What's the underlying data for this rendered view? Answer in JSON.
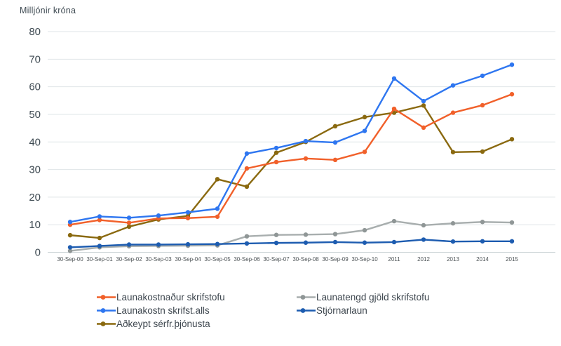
{
  "chart": {
    "y_axis_title": "Milljónir króna"
  },
  "chart_data": {
    "type": "line",
    "title": "",
    "xlabel": "",
    "ylabel": "Milljónir króna",
    "ylim": [
      0,
      80
    ],
    "yticks": [
      0,
      10,
      20,
      30,
      40,
      50,
      60,
      70,
      80
    ],
    "grid": true,
    "legend_position": "bottom",
    "categories": [
      "30-Sep-00",
      "30-Sep-01",
      "30-Sep-02",
      "30-Sep-03",
      "30-Sep-04",
      "30-Sep-05",
      "30-Sep-06",
      "30-Sep-07",
      "30-Sep-08",
      "30-Sep-09",
      "30-Sep-10",
      "2011",
      "2012",
      "2013",
      "2014",
      "2015"
    ],
    "series": [
      {
        "name": "Launakostnaður skrifstofu",
        "color": "#f1602a",
        "values": [
          10,
          11.7,
          10.7,
          12.3,
          12.4,
          12.9,
          30.4,
          32.7,
          34,
          33.5,
          36.4,
          52,
          45.2,
          50.6,
          53.3,
          57.3
        ]
      },
      {
        "name": "Launakostn skrifst.alls",
        "color": "#2e76f0",
        "values": [
          11,
          13,
          12.5,
          13.3,
          14.5,
          15.8,
          35.8,
          37.8,
          40.3,
          39.8,
          44,
          63,
          54.8,
          60.5,
          64,
          68
        ]
      },
      {
        "name": "Aðkeypt sérfr.þjónusta",
        "color": "#8a690f",
        "values": [
          6.2,
          5.2,
          9.3,
          11.9,
          13.2,
          26.5,
          23.8,
          36.1,
          40,
          45.7,
          49,
          50.6,
          53.2,
          36.3,
          36.5,
          41
        ]
      },
      {
        "name": "Launatengd gjöld skrifstofu",
        "color": "#a8aeae",
        "marker_color": "#8f9696",
        "values": [
          0.5,
          1.8,
          2.2,
          2.3,
          2.4,
          2.5,
          5.8,
          6.3,
          6.4,
          6.6,
          8,
          11.3,
          9.8,
          10.5,
          11,
          10.8
        ]
      },
      {
        "name": "Stjórnarlaun",
        "color": "#1d5cb0",
        "values": [
          1.8,
          2.3,
          2.8,
          2.8,
          2.9,
          3.0,
          3.2,
          3.4,
          3.5,
          3.7,
          3.5,
          3.7,
          4.6,
          3.9,
          4.0,
          4.0
        ]
      }
    ]
  }
}
